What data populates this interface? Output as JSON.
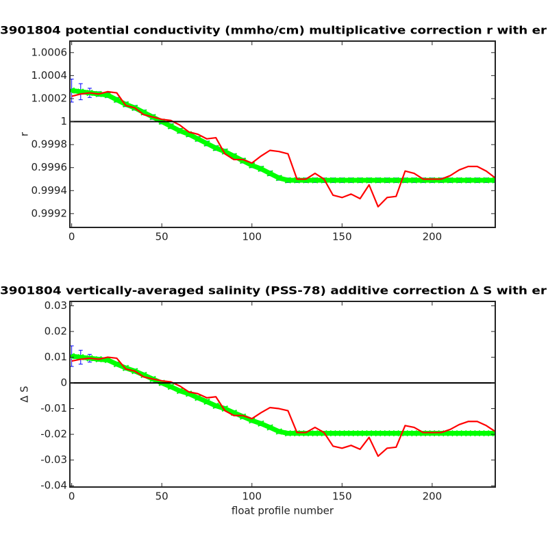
{
  "chart_data": [
    {
      "type": "line",
      "title": "3901804 potential conductivity (mmho/cm) multiplicative correction r with er",
      "ylabel": "r",
      "x": [
        0,
        5,
        10,
        15,
        20,
        25,
        30,
        35,
        40,
        45,
        50,
        55,
        60,
        65,
        70,
        75,
        80,
        85,
        90,
        95,
        100,
        105,
        110,
        115,
        120,
        125,
        130,
        135,
        140,
        145,
        150,
        155,
        160,
        165,
        170,
        175,
        180,
        185,
        190,
        195,
        200,
        205,
        210,
        215,
        220,
        225,
        230,
        235
      ],
      "series": [
        {
          "color": "#ff0000",
          "values": [
            1.00022,
            1.00024,
            1.00025,
            1.00024,
            1.00026,
            1.00025,
            1.00014,
            1.00012,
            1.00006,
            1.00004,
            1.00002,
            1.00001,
            0.99997,
            0.99991,
            0.99989,
            0.99985,
            0.99986,
            0.99972,
            0.99967,
            0.99967,
            0.99964,
            0.9997,
            0.99975,
            0.99974,
            0.99972,
            0.9995,
            0.9995,
            0.99955,
            0.9995,
            0.99936,
            0.99934,
            0.99937,
            0.99933,
            0.99945,
            0.99926,
            0.99934,
            0.99935,
            0.99957,
            0.99955,
            0.9995,
            0.9995,
            0.9995,
            0.99953,
            0.99958,
            0.99961,
            0.99961,
            0.99957,
            0.99951
          ]
        },
        {
          "color": "#00ff00",
          "error_color": "#0000ff",
          "values": [
            1.00027,
            1.00026,
            1.00025,
            1.00024,
            1.00023,
            1.00019,
            1.00015,
            1.00012,
            1.00008,
            1.00004,
            1.0,
            0.99996,
            0.99992,
            0.99989,
            0.99985,
            0.99981,
            0.99977,
            0.99974,
            0.9997,
            0.99966,
            0.99962,
            0.99959,
            0.99955,
            0.99951,
            0.99949,
            0.99949,
            0.99949,
            0.99949,
            0.99949,
            0.99949,
            0.99949,
            0.99949,
            0.99949,
            0.99949,
            0.99949,
            0.99949,
            0.99949,
            0.99949,
            0.99949,
            0.99949,
            0.99949,
            0.99949,
            0.99949,
            0.99949,
            0.99949,
            0.99949,
            0.99949,
            0.99949
          ],
          "errors": [
            0.0001,
            7e-05,
            4e-05,
            2e-05,
            2e-05,
            2e-05,
            2e-05,
            2e-05,
            2e-05,
            2e-05,
            2e-05,
            2e-05,
            2e-05,
            2e-05,
            2e-05,
            2e-05,
            2e-05,
            2e-05,
            2e-05,
            2e-05,
            2e-05,
            2e-05,
            2e-05,
            2e-05,
            2e-05,
            2e-05,
            2e-05,
            2e-05,
            2e-05,
            2e-05,
            2e-05,
            2e-05,
            2e-05,
            2e-05,
            2e-05,
            2e-05,
            2e-05,
            2e-05,
            2e-05,
            2e-05,
            2e-05,
            2e-05,
            2e-05,
            2e-05,
            2e-05,
            2e-05,
            2e-05,
            2e-05
          ]
        }
      ],
      "hline": 1,
      "xlim": [
        -1,
        235
      ],
      "xticks": [
        0,
        50,
        100,
        150,
        200
      ],
      "ylim": [
        0.99908,
        1.0007
      ],
      "yticks": [
        0.9992,
        0.9994,
        0.9996,
        0.9998,
        1,
        1.0002,
        1.0004,
        1.0006
      ]
    },
    {
      "type": "line",
      "title": "3901804 vertically-averaged salinity (PSS-78) additive correction ∆ S with er",
      "xlabel": "float profile number",
      "ylabel": "∆ S",
      "x": [
        0,
        5,
        10,
        15,
        20,
        25,
        30,
        35,
        40,
        45,
        50,
        55,
        60,
        65,
        70,
        75,
        80,
        85,
        90,
        95,
        100,
        105,
        110,
        115,
        120,
        125,
        130,
        135,
        140,
        145,
        150,
        155,
        160,
        165,
        170,
        175,
        180,
        185,
        190,
        195,
        200,
        205,
        210,
        215,
        220,
        225,
        230,
        235
      ],
      "series": [
        {
          "color": "#ff0000",
          "values": [
            0.0085,
            0.0092,
            0.0096,
            0.0092,
            0.01,
            0.0096,
            0.0054,
            0.0046,
            0.0023,
            0.0015,
            0.0008,
            0.0004,
            -0.0012,
            -0.0035,
            -0.0042,
            -0.0058,
            -0.0054,
            -0.0108,
            -0.0127,
            -0.0127,
            -0.0139,
            -0.0116,
            -0.0096,
            -0.01,
            -0.0108,
            -0.0193,
            -0.0193,
            -0.0173,
            -0.0193,
            -0.0246,
            -0.0254,
            -0.0243,
            -0.0258,
            -0.0212,
            -0.0285,
            -0.0254,
            -0.025,
            -0.0166,
            -0.0173,
            -0.0193,
            -0.0193,
            -0.0193,
            -0.0181,
            -0.0162,
            -0.015,
            -0.015,
            -0.0166,
            -0.0189
          ]
        },
        {
          "color": "#00ff00",
          "error_color": "#0000ff",
          "values": [
            0.0104,
            0.01,
            0.0096,
            0.0092,
            0.0089,
            0.0073,
            0.0058,
            0.0046,
            0.0031,
            0.0015,
            0,
            -0.0015,
            -0.0031,
            -0.0042,
            -0.0058,
            -0.0073,
            -0.0089,
            -0.01,
            -0.0116,
            -0.0131,
            -0.0146,
            -0.0158,
            -0.0173,
            -0.0189,
            -0.0196,
            -0.0196,
            -0.0196,
            -0.0196,
            -0.0196,
            -0.0196,
            -0.0196,
            -0.0196,
            -0.0196,
            -0.0196,
            -0.0196,
            -0.0196,
            -0.0196,
            -0.0196,
            -0.0196,
            -0.0196,
            -0.0196,
            -0.0196,
            -0.0196,
            -0.0196,
            -0.0196,
            -0.0196,
            -0.0196,
            -0.0196
          ],
          "errors": [
            0.004,
            0.0027,
            0.0015,
            0.0008,
            0.0008,
            0.0008,
            0.0008,
            0.0008,
            0.0008,
            0.0008,
            0.0008,
            0.0008,
            0.0008,
            0.0008,
            0.0008,
            0.0008,
            0.0008,
            0.0008,
            0.0008,
            0.0008,
            0.0008,
            0.0008,
            0.0008,
            0.0008,
            0.0008,
            0.0008,
            0.0008,
            0.0008,
            0.0008,
            0.0008,
            0.0008,
            0.0008,
            0.0008,
            0.0008,
            0.0008,
            0.0008,
            0.0008,
            0.0008,
            0.0008,
            0.0008,
            0.0008,
            0.0008,
            0.0008,
            0.0008,
            0.0008,
            0.0008,
            0.0008,
            0.0008
          ]
        }
      ],
      "hline": 0,
      "xlim": [
        -1,
        235
      ],
      "xticks": [
        0,
        50,
        100,
        150,
        200
      ],
      "ylim": [
        -0.0405,
        0.0317
      ],
      "yticks": [
        -0.04,
        -0.03,
        -0.02,
        -0.01,
        0,
        0.01,
        0.02,
        0.03
      ]
    }
  ]
}
